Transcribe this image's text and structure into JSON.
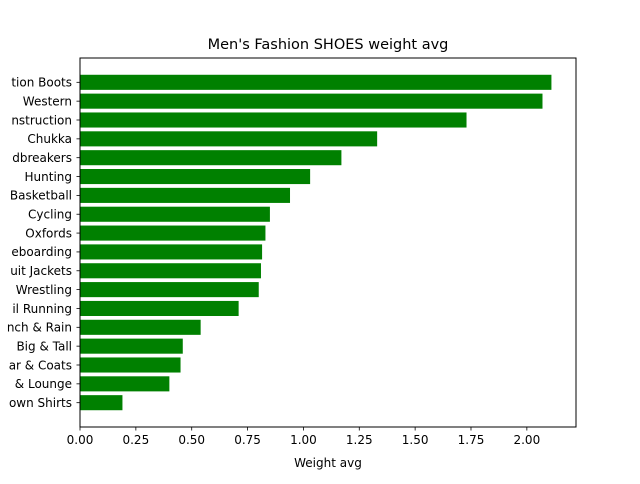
{
  "chart_data": {
    "type": "bar",
    "orientation": "horizontal",
    "title": "Men's Fashion SHOES weight avg",
    "xlabel": "Weight avg",
    "ylabel": "",
    "xlim": [
      0,
      2.22
    ],
    "x_ticks": [
      0.0,
      0.25,
      0.5,
      0.75,
      1.0,
      1.25,
      1.5,
      1.75,
      2.0
    ],
    "x_tick_labels": [
      "0.00",
      "0.25",
      "0.50",
      "0.75",
      "1.00",
      "1.25",
      "1.50",
      "1.75",
      "2.00"
    ],
    "grid": false,
    "legend": "none",
    "bar_color": "#008000",
    "categories": [
      "tion Boots",
      "Western",
      "nstruction",
      "Chukka",
      "dbreakers",
      "Hunting",
      "Basketball",
      "Cycling",
      "Oxfords",
      "eboarding",
      "uit Jackets",
      "Wrestling",
      "il Running",
      "nch & Rain",
      "Big & Tall",
      "ar & Coats",
      "& Lounge",
      "own Shirts"
    ],
    "values": [
      2.11,
      2.07,
      1.73,
      1.33,
      1.17,
      1.03,
      0.94,
      0.85,
      0.83,
      0.815,
      0.81,
      0.8,
      0.71,
      0.54,
      0.46,
      0.45,
      0.4,
      0.19
    ]
  }
}
